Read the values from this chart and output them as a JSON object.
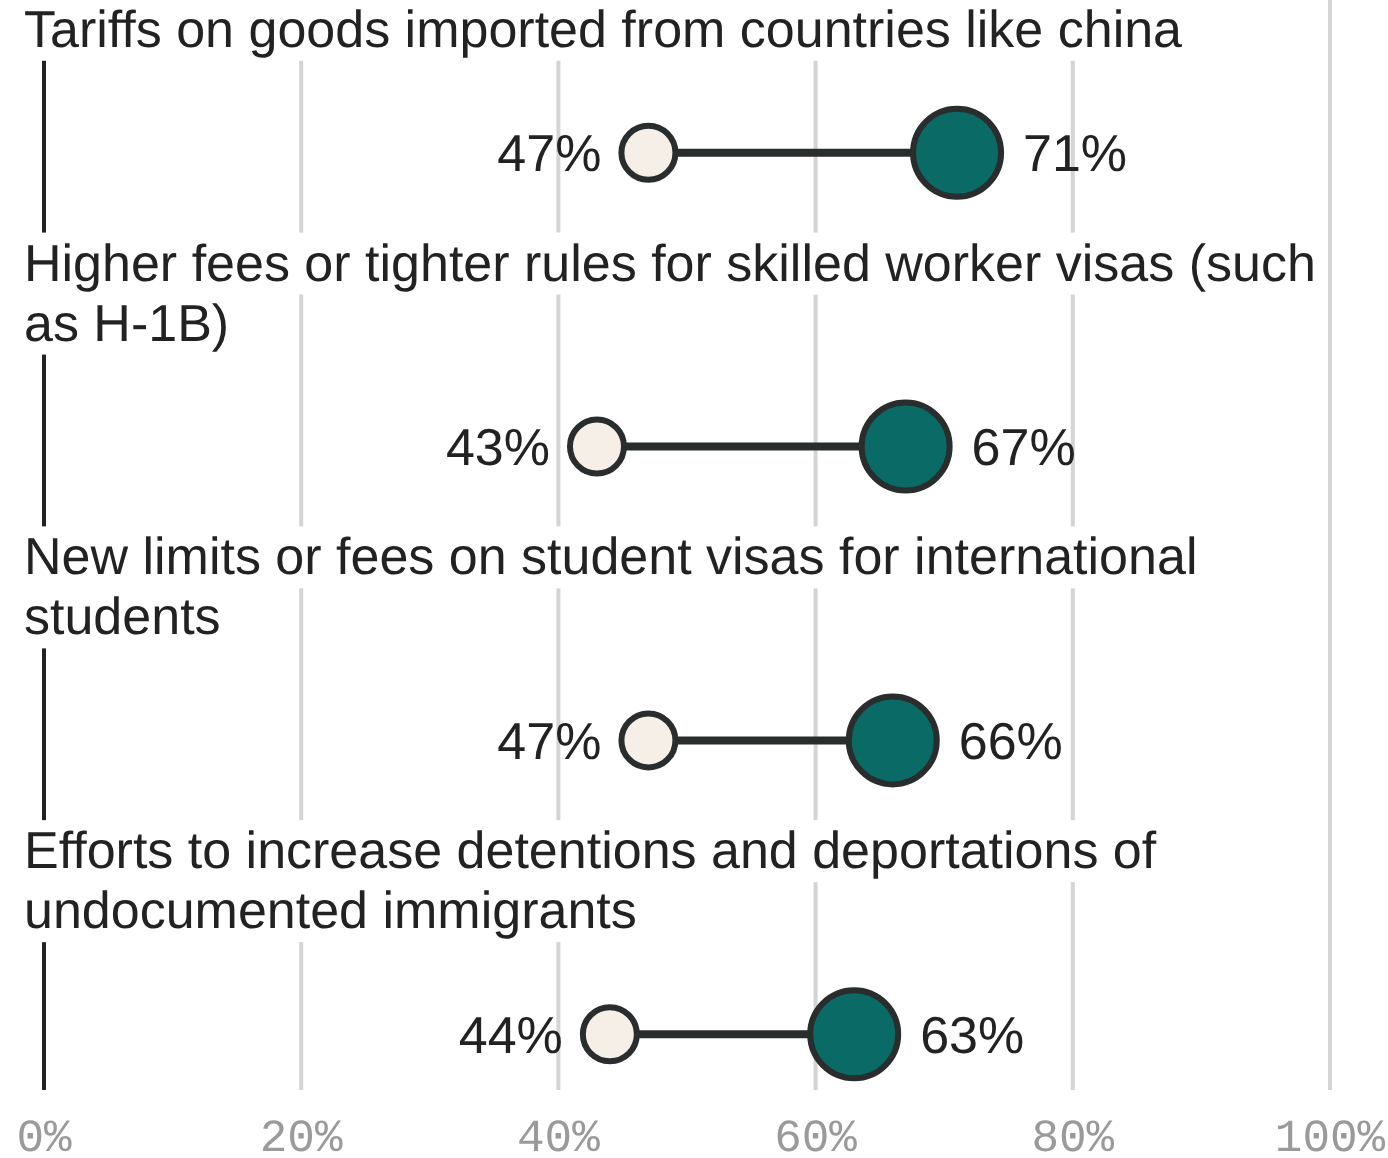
{
  "chart_data": {
    "type": "scatter",
    "orientation": "horizontal",
    "categories": [
      "Tariffs on goods imported from countries like china",
      "Higher fees or tighter rules for skilled worker visas (such as H-1B)",
      "New limits or fees on student visas for international students",
      "Efforts to increase detentions and deportations of undocumented immigrants"
    ],
    "series": [
      {
        "color": "#f6efe7",
        "values": [
          47,
          43,
          47,
          44
        ],
        "value_labels": [
          "47%",
          "43%",
          "47%",
          "44%"
        ]
      },
      {
        "color": "#0a6b66",
        "values": [
          71,
          67,
          66,
          63
        ],
        "value_labels": [
          "71%",
          "67%",
          "66%",
          "63%"
        ]
      }
    ],
    "xlim": [
      0,
      100
    ],
    "xticks": [
      {
        "value": 0,
        "label": "0%"
      },
      {
        "value": 20,
        "label": "20%"
      },
      {
        "value": 40,
        "label": "40%"
      },
      {
        "value": 60,
        "label": "60%"
      },
      {
        "value": 80,
        "label": "80%"
      },
      {
        "value": 100,
        "label": "100%"
      }
    ],
    "grid": "x",
    "marker": "circle"
  }
}
